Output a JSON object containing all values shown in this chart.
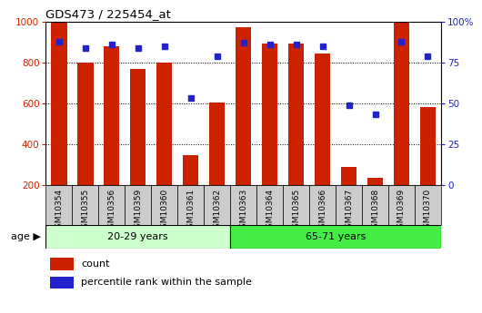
{
  "title": "GDS473 / 225454_at",
  "samples": [
    "GSM10354",
    "GSM10355",
    "GSM10356",
    "GSM10359",
    "GSM10360",
    "GSM10361",
    "GSM10362",
    "GSM10363",
    "GSM10364",
    "GSM10365",
    "GSM10366",
    "GSM10367",
    "GSM10368",
    "GSM10369",
    "GSM10370"
  ],
  "counts": [
    1000,
    800,
    880,
    770,
    800,
    345,
    605,
    975,
    895,
    895,
    845,
    285,
    235,
    1000,
    580
  ],
  "percentiles": [
    88,
    84,
    86,
    84,
    85,
    53,
    79,
    87,
    86,
    86,
    85,
    49,
    43,
    88,
    79
  ],
  "group1_label": "20-29 years",
  "group2_label": "65-71 years",
  "group1_count": 7,
  "group2_count": 8,
  "bar_color": "#cc2200",
  "marker_color": "#2222cc",
  "group1_bg": "#ccffcc",
  "group2_bg": "#44ee44",
  "tick_bg": "#cccccc",
  "ylim_left": [
    200,
    1000
  ],
  "ylim_right": [
    0,
    100
  ],
  "yticks_left": [
    200,
    400,
    600,
    800,
    1000
  ],
  "yticks_right": [
    0,
    25,
    50,
    75,
    100
  ],
  "ytick_labels_right": [
    "0",
    "25",
    "50",
    "75",
    "100%"
  ],
  "legend_count_label": "count",
  "legend_pct_label": "percentile rank within the sample",
  "age_label": "age"
}
